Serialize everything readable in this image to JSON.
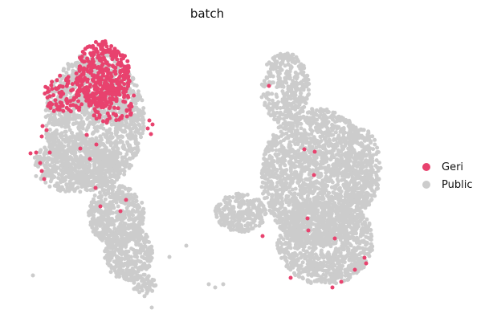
{
  "chart_data": {
    "type": "scatter",
    "title": "batch",
    "xlabel": "",
    "ylabel": "",
    "axes_visible": false,
    "grid": false,
    "legend_position": "right",
    "series": [
      {
        "name": "Public",
        "color": "#cccccc",
        "layer": "back",
        "regions": [
          {
            "cx": 118,
            "cy": 150,
            "rx": 62,
            "ry": 84,
            "n": 1400
          },
          {
            "cx": 95,
            "cy": 205,
            "rx": 55,
            "ry": 35,
            "n": 500
          },
          {
            "cx": 145,
            "cy": 268,
            "rx": 35,
            "ry": 38,
            "n": 450
          },
          {
            "cx": 160,
            "cy": 315,
            "rx": 30,
            "ry": 35,
            "n": 350
          },
          {
            "cx": 180,
            "cy": 355,
            "rx": 14,
            "ry": 14,
            "n": 60
          },
          {
            "cx": 355,
            "cy": 110,
            "rx": 30,
            "ry": 45,
            "n": 350
          },
          {
            "cx": 395,
            "cy": 220,
            "rx": 70,
            "ry": 85,
            "n": 1700
          },
          {
            "cx": 405,
            "cy": 300,
            "rx": 60,
            "ry": 55,
            "n": 1000
          },
          {
            "cx": 300,
            "cy": 265,
            "rx": 32,
            "ry": 24,
            "n": 250
          },
          {
            "cx": 450,
            "cy": 210,
            "rx": 24,
            "ry": 50,
            "n": 250
          }
        ],
        "points": [
          [
            41,
            343
          ],
          [
            211,
            320
          ],
          [
            232,
            306
          ],
          [
            260,
            354
          ],
          [
            268,
            358
          ],
          [
            278,
            354
          ],
          [
            189,
            383
          ]
        ]
      },
      {
        "name": "Geri",
        "color": "#e8426e",
        "layer": "front",
        "regions": [
          {
            "cx": 128,
            "cy": 93,
            "rx": 34,
            "ry": 42,
            "n": 380
          },
          {
            "cx": 82,
            "cy": 118,
            "rx": 28,
            "ry": 25,
            "n": 90
          },
          {
            "cx": 140,
            "cy": 130,
            "rx": 30,
            "ry": 24,
            "n": 70
          }
        ],
        "points": [
          [
            186,
            150
          ],
          [
            190,
            155
          ],
          [
            188,
            167
          ],
          [
            184,
            160
          ],
          [
            53,
            157
          ],
          [
            58,
            162
          ],
          [
            52,
            170
          ],
          [
            45,
            190
          ],
          [
            38,
            191
          ],
          [
            50,
            203
          ],
          [
            52,
            213
          ],
          [
            55,
            223
          ],
          [
            62,
            190
          ],
          [
            100,
            185
          ],
          [
            108,
            168
          ],
          [
            120,
            180
          ],
          [
            112,
            198
          ],
          [
            119,
            234
          ],
          [
            157,
            249
          ],
          [
            125,
            257
          ],
          [
            150,
            263
          ],
          [
            335,
            107
          ],
          [
            379,
            186
          ],
          [
            392,
            189
          ],
          [
            391,
            218
          ],
          [
            383,
            272
          ],
          [
            384,
            287
          ],
          [
            327,
            294
          ],
          [
            417,
            297
          ],
          [
            454,
            321
          ],
          [
            456,
            328
          ],
          [
            442,
            336
          ],
          [
            425,
            351
          ],
          [
            414,
            358
          ],
          [
            362,
            346
          ]
        ]
      }
    ]
  },
  "legend": {
    "items": [
      {
        "label": "Geri",
        "color": "#e8426e"
      },
      {
        "label": "Public",
        "color": "#cccccc"
      }
    ]
  }
}
